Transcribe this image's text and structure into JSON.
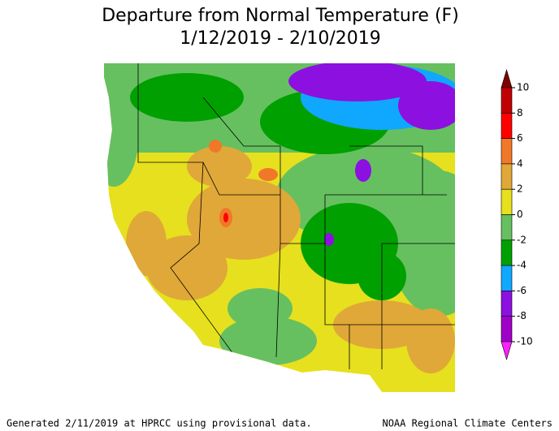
{
  "header": {
    "title_line1": "Departure from Normal Temperature (F)",
    "title_line2": "1/12/2019 - 2/10/2019"
  },
  "legend": {
    "ticks": [
      10,
      8,
      6,
      4,
      2,
      0,
      -2,
      -4,
      -6,
      -8,
      -10
    ],
    "colors": [
      "#800000",
      "#c00000",
      "#ff0000",
      "#f07828",
      "#e0a838",
      "#e6e01e",
      "#66c060",
      "#00a000",
      "#10a8ff",
      "#8c10e0",
      "#a000c8",
      "#ff20ff"
    ]
  },
  "footer": {
    "left": "Generated 2/11/2019 at HPRCC using provisional data.",
    "right": "NOAA Regional Climate Centers"
  }
}
